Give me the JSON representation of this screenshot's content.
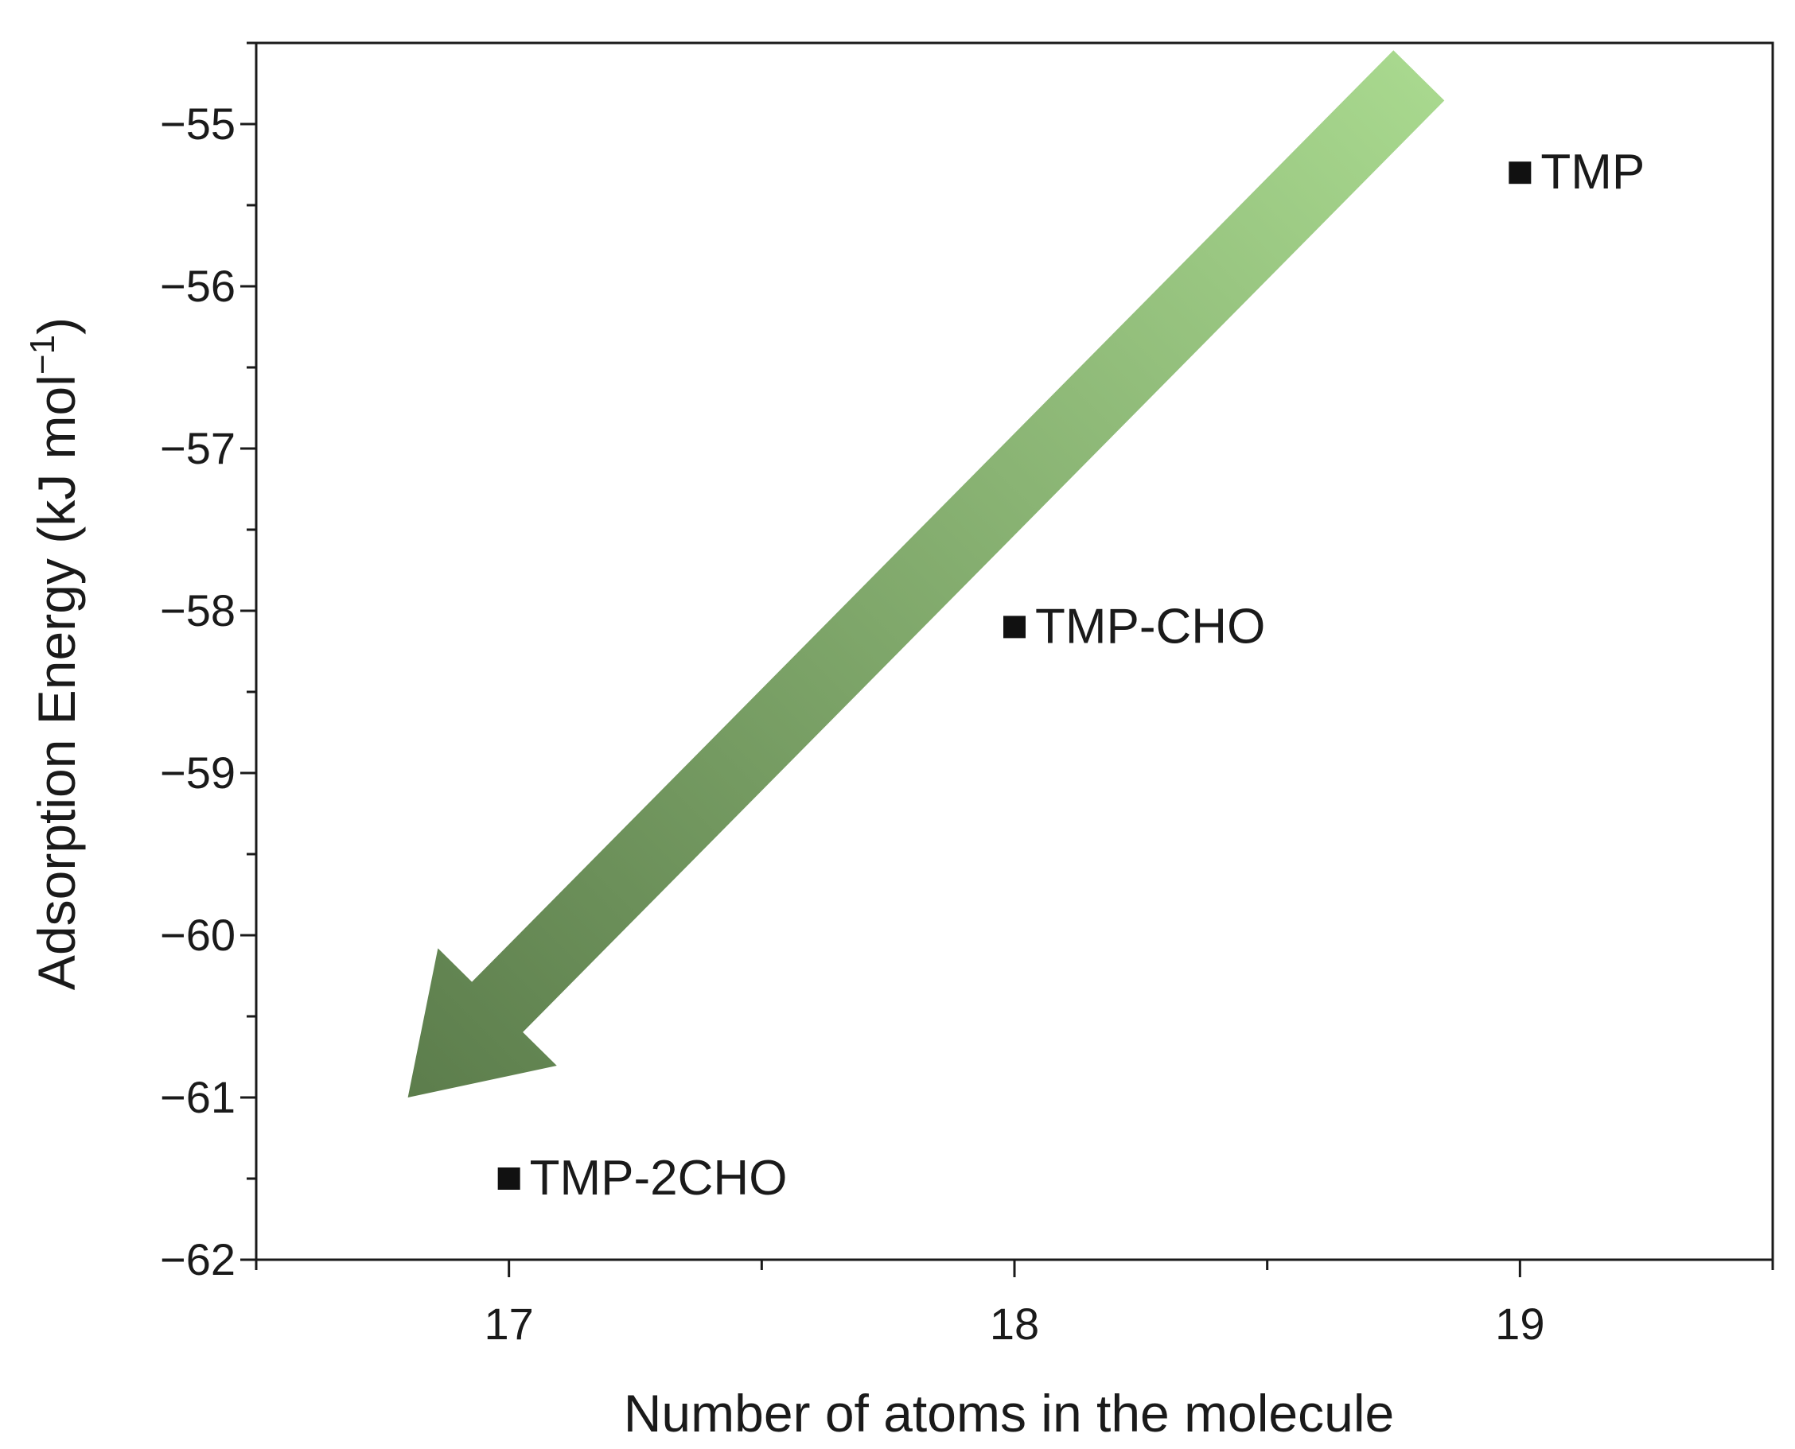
{
  "chart_data": {
    "type": "scatter",
    "xlabel": "Number of atoms in the molecule",
    "ylabel": "Adsorption Energy (kJ mol",
    "ylabel_superscript": "−1",
    "ylabel_suffix": ")",
    "xlim": [
      16.5,
      19.5
    ],
    "ylim": [
      -62,
      -54.5
    ],
    "x_major_ticks": [
      17,
      18,
      19
    ],
    "x_tick_labels": [
      "17",
      "18",
      "19"
    ],
    "x_minor_ticks": [
      16.5,
      17.5,
      18.5,
      19.5
    ],
    "y_major_ticks": [
      -55,
      -56,
      -57,
      -58,
      -59,
      -60,
      -61,
      -62
    ],
    "y_tick_labels": [
      "−55",
      "−56",
      "−57",
      "−58",
      "−59",
      "−60",
      "−61",
      "−62"
    ],
    "y_minor_ticks": [
      -54.5,
      -55.5,
      -56.5,
      -57.5,
      -58.5,
      -59.5,
      -60.5,
      -61.5
    ],
    "grid": false,
    "legend": "none",
    "points": [
      {
        "x": 19,
        "y": -55.3,
        "label": "TMP"
      },
      {
        "x": 18,
        "y": -58.1,
        "label": "TMP-CHO"
      },
      {
        "x": 17,
        "y": -61.5,
        "label": "TMP-2CHO"
      }
    ],
    "annotations": [
      {
        "type": "arrow",
        "from": {
          "x": 18.8,
          "y": -54.7
        },
        "to": {
          "x": 16.8,
          "y": -61.0
        },
        "direction": "down-left"
      }
    ],
    "colors": {
      "marker": "#111111",
      "axis": "#1a1a1a",
      "arrow_start": "#a8d88e",
      "arrow_end": "#5c7d4c"
    }
  }
}
